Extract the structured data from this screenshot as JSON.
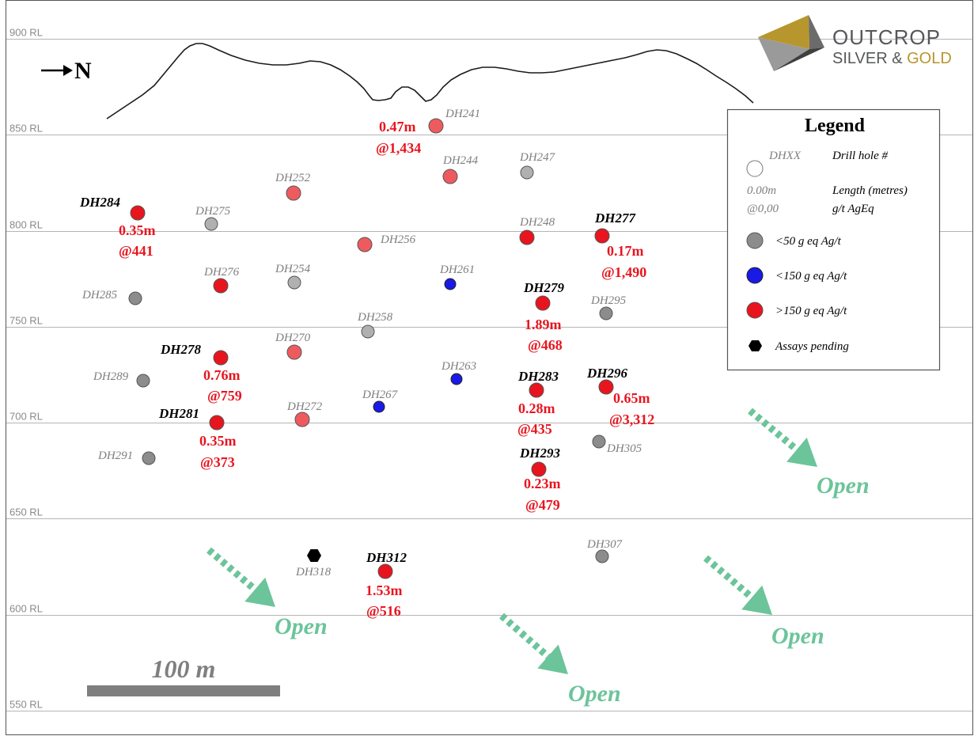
{
  "rl_levels": [
    {
      "value": 900,
      "label": "900 RL"
    },
    {
      "value": 850,
      "label": "850 RL"
    },
    {
      "value": 800,
      "label": "800 RL"
    },
    {
      "value": 750,
      "label": "750 RL"
    },
    {
      "value": 700,
      "label": "700 RL"
    },
    {
      "value": 650,
      "label": "650 RL"
    },
    {
      "value": 600,
      "label": "600 RL"
    },
    {
      "value": 550,
      "label": "550 RL"
    }
  ],
  "north_arrow": {
    "label": "N",
    "symbol": "right-arrow"
  },
  "logo": {
    "line1": "OUTCROP",
    "line2_prefix": "SILVER & ",
    "line2_gold": "GOLD"
  },
  "scale_bar": {
    "label": "100 m"
  },
  "legend": {
    "title": "Legend",
    "drill_hole_code": "DHXX",
    "drill_hole_desc": "Drill hole #",
    "length_code": "0.00m",
    "length_desc": "Length (metres)",
    "grade_code": "@0,00",
    "grade_desc": "g/t AgEq",
    "class_low": "<50 g eq Ag/t",
    "class_mid": "<150 g eq Ag/t",
    "class_high": ">150 g eq Ag/t",
    "class_pending": "Assays pending"
  },
  "colors": {
    "high": "#e8151f",
    "high_faded": "#ee5b5f",
    "mid": "#1a1ae6",
    "low": "#8c8c8c",
    "low_faded": "#b0b0b0",
    "pending": "#000000",
    "open_arrow": "#6cc49a",
    "rl_line": "#b5b5b5",
    "scale_bar": "#7f7f7f"
  },
  "open_label": "Open",
  "drill_holes": [
    {
      "id": "DH241",
      "class": "high_faded",
      "bold": false,
      "intercept": "0.47m",
      "grade": "@1,434"
    },
    {
      "id": "DH244",
      "class": "high_faded",
      "bold": false,
      "intercept": "",
      "grade": ""
    },
    {
      "id": "DH247",
      "class": "low_faded",
      "bold": false,
      "intercept": "",
      "grade": ""
    },
    {
      "id": "DH252",
      "class": "high_faded",
      "bold": false,
      "intercept": "",
      "grade": ""
    },
    {
      "id": "DH284",
      "class": "high",
      "bold": true,
      "intercept": "0.35m",
      "grade": "@441"
    },
    {
      "id": "DH275",
      "class": "low_faded",
      "bold": false,
      "intercept": "",
      "grade": ""
    },
    {
      "id": "DH256",
      "class": "high_faded",
      "bold": false,
      "intercept": "",
      "grade": ""
    },
    {
      "id": "DH248",
      "class": "high",
      "bold": false,
      "intercept": "",
      "grade": ""
    },
    {
      "id": "DH277",
      "class": "high",
      "bold": true,
      "intercept": "0.17m",
      "grade": "@1,490"
    },
    {
      "id": "DH276",
      "class": "high",
      "bold": false,
      "intercept": "",
      "grade": ""
    },
    {
      "id": "DH254",
      "class": "low_faded",
      "bold": false,
      "intercept": "",
      "grade": ""
    },
    {
      "id": "DH261",
      "class": "mid",
      "bold": false,
      "intercept": "",
      "grade": ""
    },
    {
      "id": "DH285",
      "class": "low",
      "bold": false,
      "intercept": "",
      "grade": ""
    },
    {
      "id": "DH279",
      "class": "high",
      "bold": true,
      "intercept": "1.89m",
      "grade": "@468"
    },
    {
      "id": "DH295",
      "class": "low",
      "bold": false,
      "intercept": "",
      "grade": ""
    },
    {
      "id": "DH258",
      "class": "low_faded",
      "bold": false,
      "intercept": "",
      "grade": ""
    },
    {
      "id": "DH270",
      "class": "high_faded",
      "bold": false,
      "intercept": "",
      "grade": ""
    },
    {
      "id": "DH278",
      "class": "high",
      "bold": true,
      "intercept": "0.76m",
      "grade": "@759"
    },
    {
      "id": "DH263",
      "class": "mid",
      "bold": false,
      "intercept": "",
      "grade": ""
    },
    {
      "id": "DH289",
      "class": "low",
      "bold": false,
      "intercept": "",
      "grade": ""
    },
    {
      "id": "DH283",
      "class": "high",
      "bold": true,
      "intercept": "0.28m",
      "grade": "@435"
    },
    {
      "id": "DH296",
      "class": "high",
      "bold": true,
      "intercept": "0.65m",
      "grade": "@3,312"
    },
    {
      "id": "DH267",
      "class": "mid",
      "bold": false,
      "intercept": "",
      "grade": ""
    },
    {
      "id": "DH272",
      "class": "high_faded",
      "bold": false,
      "intercept": "",
      "grade": ""
    },
    {
      "id": "DH281",
      "class": "high",
      "bold": true,
      "intercept": "0.35m",
      "grade": "@373"
    },
    {
      "id": "DH305",
      "class": "low",
      "bold": false,
      "intercept": "",
      "grade": ""
    },
    {
      "id": "DH291",
      "class": "low",
      "bold": false,
      "intercept": "",
      "grade": ""
    },
    {
      "id": "DH293",
      "class": "high",
      "bold": true,
      "intercept": "0.23m",
      "grade": "@479"
    },
    {
      "id": "DH318",
      "class": "pending",
      "bold": false,
      "intercept": "",
      "grade": ""
    },
    {
      "id": "DH312",
      "class": "high",
      "bold": true,
      "intercept": "1.53m",
      "grade": "@516"
    },
    {
      "id": "DH307",
      "class": "low",
      "bold": false,
      "intercept": "",
      "grade": ""
    }
  ]
}
